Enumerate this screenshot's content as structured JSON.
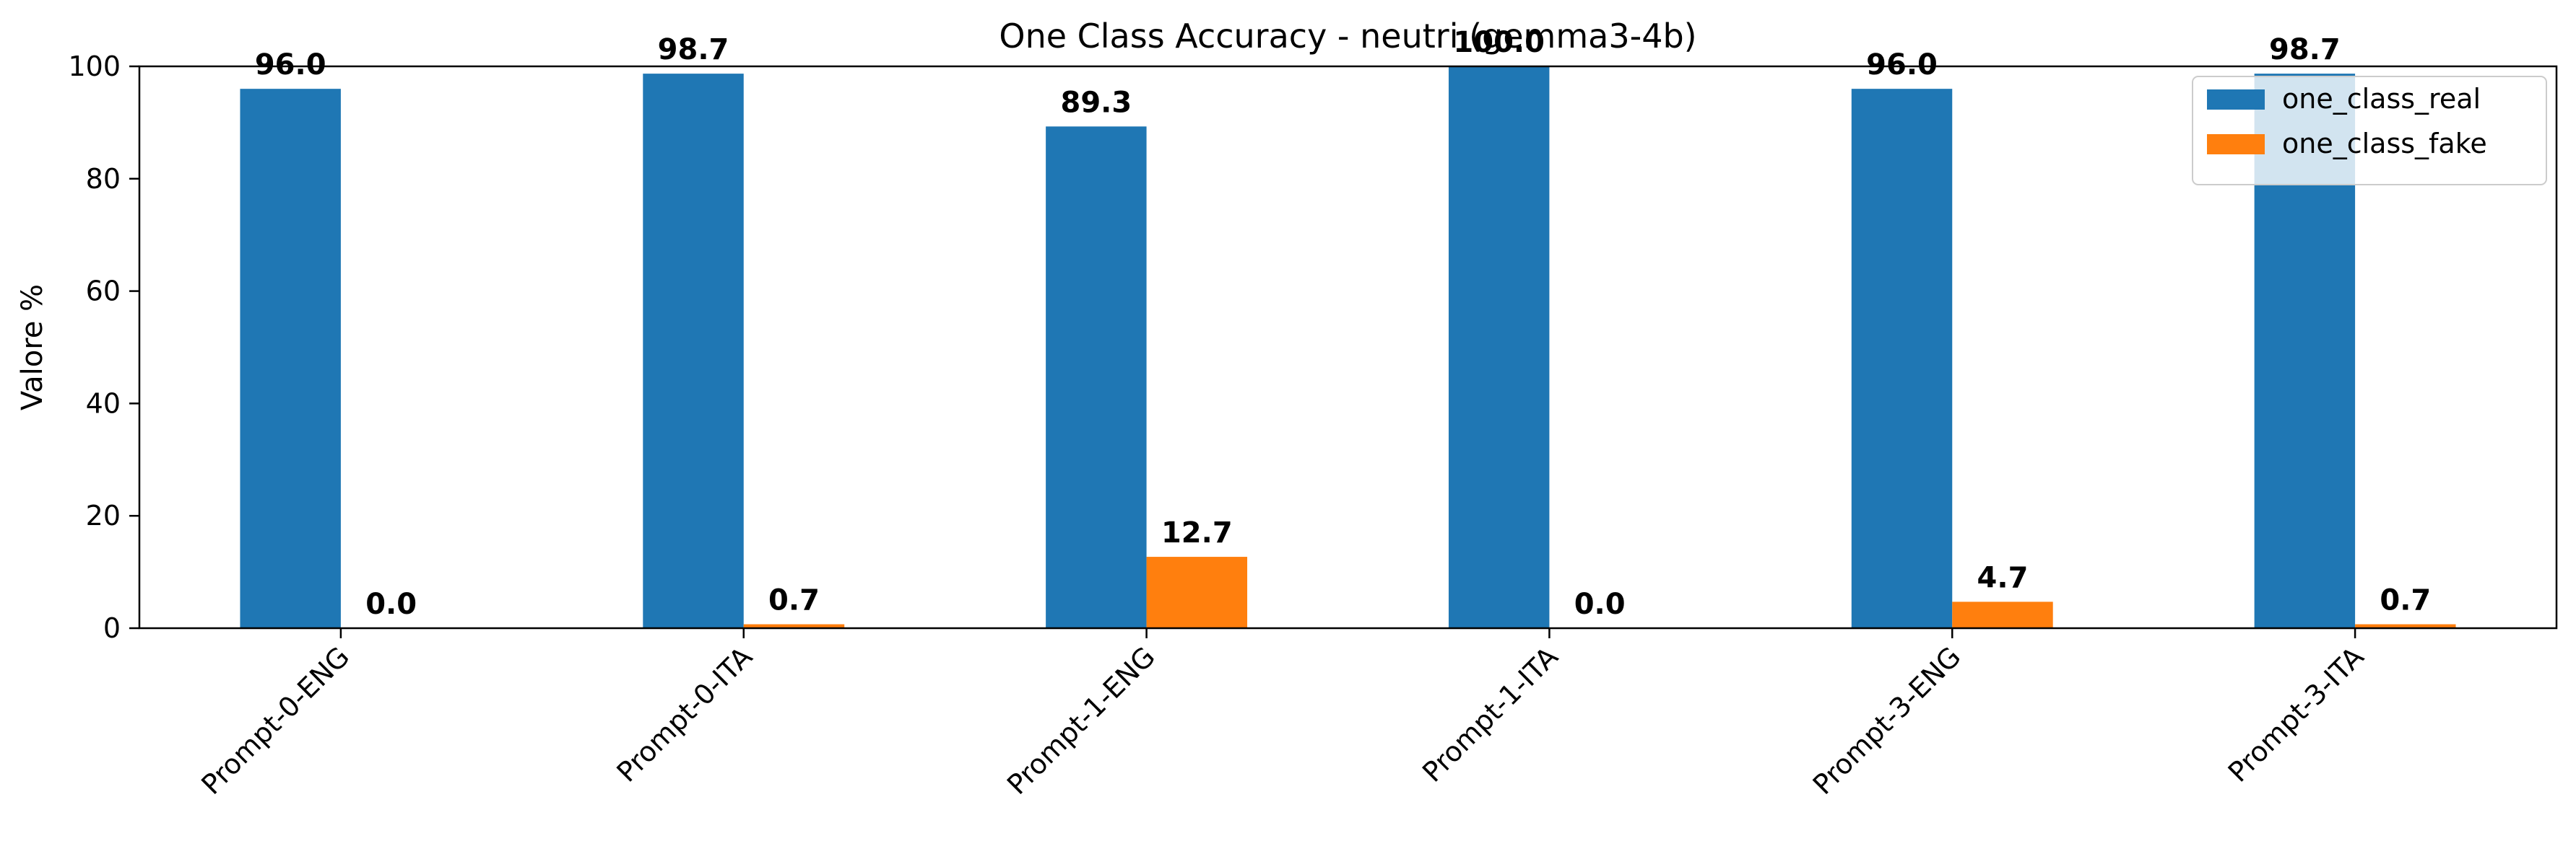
{
  "chart_data": {
    "type": "bar",
    "title": "One Class Accuracy - neutri (gemma3-4b)",
    "xlabel": "",
    "ylabel": "Valore %",
    "ylim": [
      0,
      100
    ],
    "yticks": [
      0,
      20,
      40,
      60,
      80,
      100
    ],
    "grid": false,
    "legend_position": "top-right",
    "categories": [
      "Prompt-0-ENG",
      "Prompt-0-ITA",
      "Prompt-1-ENG",
      "Prompt-1-ITA",
      "Prompt-3-ENG",
      "Prompt-3-ITA"
    ],
    "series": [
      {
        "name": "one_class_real",
        "color": "#1f77b4",
        "values": [
          96.0,
          98.7,
          89.3,
          100.0,
          96.0,
          98.7
        ],
        "labels": [
          "96.0",
          "98.7",
          "89.3",
          "100.0",
          "96.0",
          "98.7"
        ]
      },
      {
        "name": "one_class_fake",
        "color": "#ff7f0e",
        "values": [
          0.0,
          0.7,
          12.7,
          0.0,
          4.7,
          0.7
        ],
        "labels": [
          "0.0",
          "0.7",
          "12.7",
          "0.0",
          "4.7",
          "0.7"
        ]
      }
    ]
  }
}
